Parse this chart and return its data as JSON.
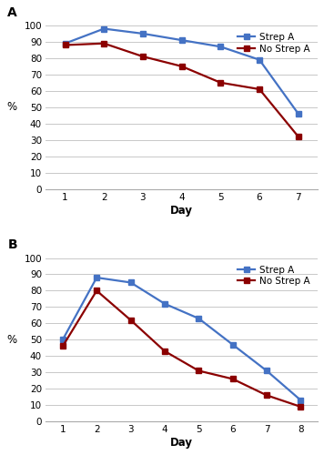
{
  "panel_A": {
    "label": "A",
    "strep_a": {
      "x": [
        1,
        2,
        3,
        4,
        5,
        6,
        7
      ],
      "y": [
        89,
        98,
        95,
        91,
        87,
        79,
        46
      ]
    },
    "no_strep_a": {
      "x": [
        1,
        2,
        3,
        4,
        5,
        6,
        7
      ],
      "y": [
        88,
        89,
        81,
        75,
        65,
        61,
        32
      ]
    },
    "xlabel": "Day",
    "ylabel": "%",
    "ylim": [
      0,
      100
    ],
    "xlim": [
      0.5,
      7.5
    ],
    "xticks": [
      1,
      2,
      3,
      4,
      5,
      6,
      7
    ],
    "yticks": [
      0,
      10,
      20,
      30,
      40,
      50,
      60,
      70,
      80,
      90,
      100
    ]
  },
  "panel_B": {
    "label": "B",
    "strep_a": {
      "x": [
        1,
        2,
        3,
        4,
        5,
        6,
        7,
        8
      ],
      "y": [
        50,
        88,
        85,
        72,
        63,
        47,
        31,
        13
      ]
    },
    "no_strep_a": {
      "x": [
        1,
        2,
        3,
        4,
        5,
        6,
        7,
        8
      ],
      "y": [
        46,
        80,
        62,
        43,
        31,
        26,
        16,
        9
      ]
    },
    "xlabel": "Day",
    "ylabel": "%",
    "ylim": [
      0,
      100
    ],
    "xlim": [
      0.5,
      8.5
    ],
    "xticks": [
      1,
      2,
      3,
      4,
      5,
      6,
      7,
      8
    ],
    "yticks": [
      0,
      10,
      20,
      30,
      40,
      50,
      60,
      70,
      80,
      90,
      100
    ]
  },
  "strep_color": "#4472C4",
  "no_strep_color": "#8B0000",
  "strep_label": "Strep A",
  "no_strep_label": "No Strep A",
  "linewidth": 1.6,
  "markersize": 5,
  "legend_fontsize": 7.5,
  "axis_label_fontsize": 8.5,
  "tick_fontsize": 7.5,
  "panel_label_fontsize": 10,
  "background_color": "#ffffff",
  "grid_color": "#c8c8c8",
  "spine_color": "#aaaaaa"
}
